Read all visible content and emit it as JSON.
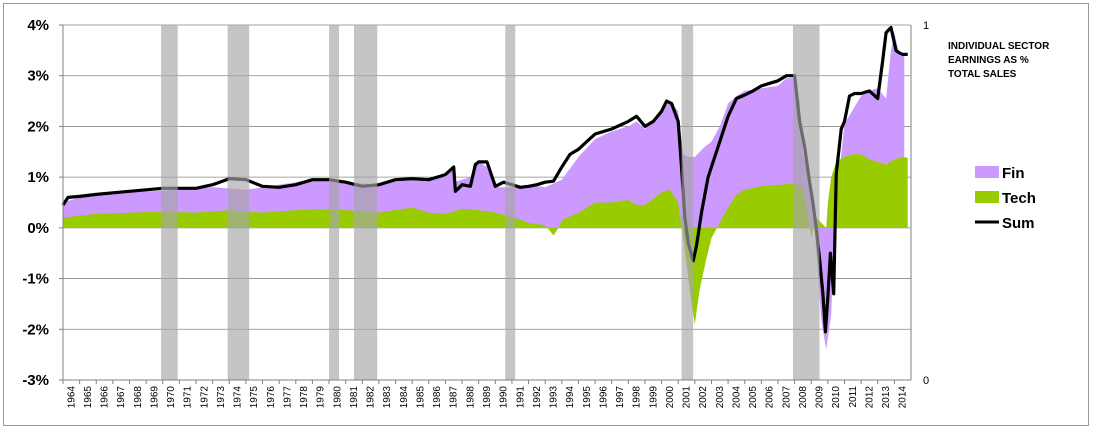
{
  "chart_data": {
    "type": "area",
    "title_lines": [
      "INDIVIDUAL SECTOR",
      "EARNINGS AS %",
      "TOTAL SALES"
    ],
    "ylim": [
      -3,
      4
    ],
    "y_ticks": [
      "4%",
      "3%",
      "2%",
      "1%",
      "0%",
      "-1%",
      "-2%",
      "-3%"
    ],
    "y2_ticks": [
      "1",
      "0"
    ],
    "x_range": [
      1964,
      2015
    ],
    "x_ticks": [
      "1964",
      "1965",
      "1966",
      "1967",
      "1968",
      "1969",
      "1970",
      "1971",
      "1972",
      "1973",
      "1974",
      "1975",
      "1976",
      "1977",
      "1978",
      "1979",
      "1980",
      "1981",
      "1982",
      "1983",
      "1984",
      "1985",
      "1986",
      "1987",
      "1988",
      "1989",
      "1990",
      "1991",
      "1992",
      "1993",
      "1994",
      "1995",
      "1996",
      "1997",
      "1998",
      "1999",
      "2000",
      "2001",
      "2002",
      "2003",
      "2004",
      "2005",
      "2006",
      "2007",
      "2008",
      "2009",
      "2010",
      "2011",
      "2012",
      "2013",
      "2014"
    ],
    "recessions": [
      [
        1969.9,
        1970.9
      ],
      [
        1973.9,
        1975.2
      ],
      [
        1980.0,
        1980.6
      ],
      [
        1981.5,
        1982.9
      ],
      [
        1990.6,
        1991.2
      ],
      [
        2001.2,
        2001.9
      ],
      [
        2007.9,
        2009.5
      ]
    ],
    "series": [
      {
        "name": "Fin",
        "color": "#cc99ff",
        "x": [
          1964.0,
          1965.0,
          1968.0,
          1971.0,
          1973.0,
          1975.0,
          1976.0,
          1979.0,
          1980.0,
          1981.0,
          1983.0,
          1985.0,
          1987.0,
          1987.4,
          1987.5,
          1988.5,
          1988.7,
          1989.0,
          1989.5,
          1990.0,
          1991.0,
          1992.0,
          1993.0,
          1994.0,
          1995.0,
          1996.0,
          1997.0,
          1998.0,
          1998.5,
          1999.0,
          2000.0,
          2000.5,
          2001.0,
          2001.3,
          2001.6,
          2002.0,
          2002.3,
          2002.6,
          2003.0,
          2003.5,
          2004.0,
          2004.5,
          2005.0,
          2006.0,
          2007.0,
          2007.5,
          2008.0,
          2008.3,
          2008.5,
          2009.0,
          2009.2,
          2009.4,
          2009.6,
          2009.9,
          2010.2,
          2010.5,
          2011.0,
          2012.0,
          2012.5,
          2013.0,
          2013.5,
          2013.8,
          2014.0,
          2014.3,
          2014.6
        ],
        "values": [
          0.5,
          0.6,
          0.7,
          0.75,
          0.8,
          0.75,
          0.8,
          0.95,
          0.92,
          0.9,
          0.85,
          0.98,
          1.0,
          1.15,
          0.9,
          1.0,
          1.2,
          1.3,
          1.2,
          0.8,
          0.8,
          0.85,
          0.8,
          0.95,
          1.4,
          1.75,
          1.9,
          2.0,
          2.1,
          1.95,
          2.3,
          2.5,
          2.3,
          1.45,
          1.4,
          1.4,
          1.5,
          1.6,
          1.7,
          2.0,
          2.45,
          2.6,
          2.7,
          2.75,
          2.8,
          2.95,
          2.95,
          2.5,
          1.5,
          0.8,
          0.0,
          -0.9,
          -1.8,
          -2.4,
          -1.7,
          0.5,
          2.05,
          2.6,
          2.7,
          2.75,
          2.55,
          3.5,
          3.85,
          3.4,
          3.4
        ]
      },
      {
        "name": "Tech",
        "color": "#99cc00",
        "x": [
          1964.0,
          1966.0,
          1970.0,
          1972.0,
          1974.0,
          1975.0,
          1976.0,
          1978.0,
          1979.0,
          1981.0,
          1983.0,
          1985.0,
          1986.0,
          1987.0,
          1988.0,
          1989.0,
          1990.0,
          1991.0,
          1992.0,
          1993.0,
          1993.5,
          1993.8,
          1994.0,
          1995.0,
          1996.0,
          1997.0,
          1998.0,
          1998.5,
          1999.0,
          2000.0,
          2000.5,
          2001.0,
          2001.3,
          2001.5,
          2001.8,
          2002.0,
          2002.3,
          2002.7,
          2003.0,
          2003.5,
          2004.0,
          2004.5,
          2005.0,
          2006.0,
          2007.0,
          2008.0,
          2008.5,
          2008.8,
          2009.0,
          2009.3,
          2009.6,
          2009.9,
          2010.0,
          2010.2,
          2010.5,
          2011.0,
          2011.5,
          2012.0,
          2012.5,
          2013.0,
          2013.5,
          2014.0,
          2014.5,
          2014.8
        ],
        "values": [
          0.2,
          0.28,
          0.32,
          0.3,
          0.35,
          0.32,
          0.3,
          0.35,
          0.37,
          0.35,
          0.3,
          0.4,
          0.3,
          0.28,
          0.38,
          0.35,
          0.3,
          0.22,
          0.1,
          0.05,
          -0.15,
          0.0,
          0.15,
          0.3,
          0.5,
          0.5,
          0.55,
          0.45,
          0.45,
          0.7,
          0.75,
          0.5,
          -0.2,
          -0.7,
          -1.5,
          -1.9,
          -1.2,
          -0.6,
          -0.2,
          0.1,
          0.4,
          0.65,
          0.75,
          0.82,
          0.85,
          0.87,
          0.8,
          0.3,
          -0.2,
          0.2,
          0.1,
          0.0,
          0.5,
          1.0,
          1.3,
          1.4,
          1.45,
          1.45,
          1.35,
          1.3,
          1.25,
          1.35,
          1.4,
          1.38
        ]
      },
      {
        "name": "Sum",
        "color": "#000000",
        "x": [
          1964.0,
          1964.3,
          1965.0,
          1966.0,
          1968.0,
          1970.0,
          1972.0,
          1973.0,
          1974.0,
          1975.0,
          1976.0,
          1977.0,
          1978.0,
          1979.0,
          1980.0,
          1981.0,
          1982.0,
          1983.0,
          1984.0,
          1985.0,
          1986.0,
          1987.0,
          1987.5,
          1987.6,
          1988.0,
          1988.5,
          1988.8,
          1989.0,
          1989.5,
          1990.0,
          1990.5,
          1991.0,
          1991.5,
          1992.0,
          1992.5,
          1993.0,
          1993.5,
          1994.0,
          1994.5,
          1995.0,
          1995.5,
          1996.0,
          1997.0,
          1998.0,
          1998.5,
          1999.0,
          1999.5,
          2000.0,
          2000.3,
          2000.6,
          2001.0,
          2001.2,
          2001.4,
          2001.6,
          2001.9,
          2002.1,
          2002.4,
          2002.8,
          2003.1,
          2003.5,
          2004.0,
          2004.5,
          2005.0,
          2005.5,
          2006.0,
          2006.5,
          2007.0,
          2007.5,
          2008.0,
          2008.3,
          2008.6,
          2008.9,
          2009.1,
          2009.3,
          2009.5,
          2009.7,
          2009.85,
          2010.0,
          2010.15,
          2010.35,
          2010.5,
          2010.8,
          2011.0,
          2011.3,
          2011.6,
          2012.0,
          2012.5,
          2013.0,
          2013.3,
          2013.5,
          2013.8,
          2014.1,
          2014.3,
          2014.5,
          2014.8
        ],
        "values": [
          0.45,
          0.6,
          0.62,
          0.66,
          0.72,
          0.78,
          0.78,
          0.85,
          0.97,
          0.95,
          0.82,
          0.8,
          0.85,
          0.95,
          0.95,
          0.9,
          0.82,
          0.85,
          0.95,
          0.97,
          0.95,
          1.05,
          1.2,
          0.72,
          0.85,
          0.82,
          1.25,
          1.3,
          1.3,
          0.82,
          0.9,
          0.85,
          0.8,
          0.82,
          0.85,
          0.9,
          0.92,
          1.2,
          1.45,
          1.55,
          1.7,
          1.85,
          1.95,
          2.1,
          2.2,
          2.0,
          2.1,
          2.3,
          2.5,
          2.45,
          2.1,
          1.2,
          0.2,
          -0.3,
          -0.65,
          -0.35,
          0.3,
          1.0,
          1.3,
          1.7,
          2.2,
          2.55,
          2.62,
          2.7,
          2.8,
          2.85,
          2.9,
          3.0,
          3.0,
          2.1,
          1.6,
          0.9,
          0.5,
          0.0,
          -0.6,
          -1.3,
          -2.05,
          -1.35,
          -0.5,
          -1.3,
          1.05,
          1.95,
          2.1,
          2.6,
          2.65,
          2.65,
          2.7,
          2.55,
          3.3,
          3.85,
          3.95,
          3.5,
          3.45,
          3.42,
          3.42
        ]
      }
    ]
  }
}
